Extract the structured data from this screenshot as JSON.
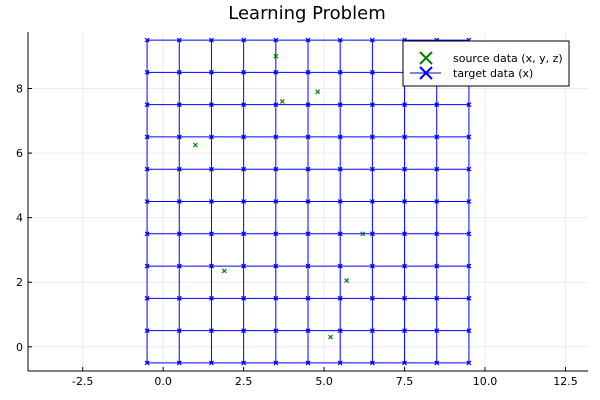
{
  "chart_data": {
    "type": "scatter",
    "title": "Learning Problem",
    "xlabel": "",
    "ylabel": "",
    "xlim": [
      -4.2,
      13.2
    ],
    "ylim": [
      -0.75,
      9.75
    ],
    "xticks": [
      -2.5,
      0.0,
      2.5,
      5.0,
      7.5,
      10.0,
      12.5
    ],
    "xtick_labels": [
      "-2.5",
      "0.0",
      "2.5",
      "5.0",
      "7.5",
      "10.0",
      "12.5"
    ],
    "yticks": [
      0,
      2,
      4,
      6,
      8
    ],
    "ytick_labels": [
      "0",
      "2",
      "4",
      "6",
      "8"
    ],
    "grid": true,
    "legend_position": "top-right",
    "series": [
      {
        "name": "source data (x, y, z)",
        "color": "#008000",
        "marker": "x",
        "points": [
          [
            3.5,
            9.0
          ],
          [
            3.7,
            7.6
          ],
          [
            4.8,
            7.9
          ],
          [
            1.0,
            6.25
          ],
          [
            6.2,
            3.5
          ],
          [
            1.9,
            2.35
          ],
          [
            5.7,
            2.05
          ],
          [
            5.2,
            0.3
          ]
        ]
      },
      {
        "name": "target data (x)",
        "color": "#0000ff",
        "marker": "x",
        "grid_mesh": true,
        "x": [
          -0.5,
          0.5,
          1.5,
          2.5,
          3.5,
          4.5,
          5.5,
          6.5,
          7.5,
          8.5,
          9.5
        ],
        "y": [
          -0.5,
          0.5,
          1.5,
          2.5,
          3.5,
          4.5,
          5.5,
          6.5,
          7.5,
          8.5,
          9.5
        ]
      }
    ]
  }
}
